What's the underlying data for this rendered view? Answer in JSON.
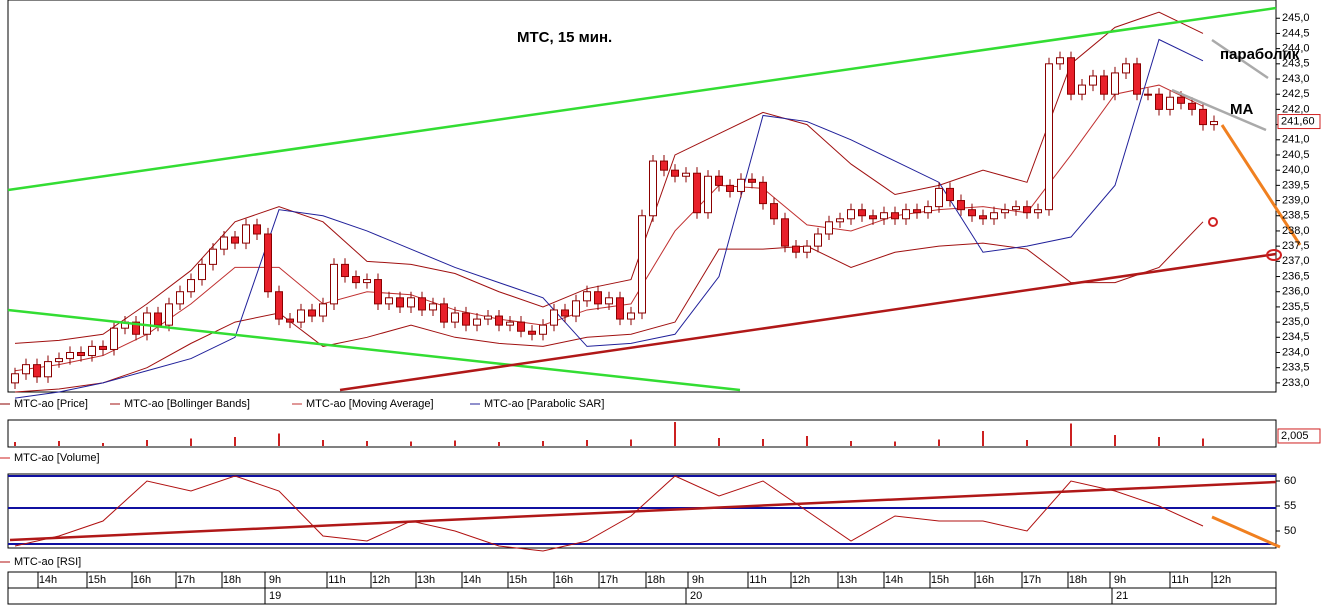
{
  "chart_data": [
    {
      "type": "candlestick",
      "name": "MTC-ao [Price]",
      "title": "МТС, 15 мин.",
      "annotations": [
        "параболик",
        "МА"
      ],
      "up_color": "#ffffff",
      "down_color": "#e8202a",
      "edge_color": "#8b0000",
      "ylim": [
        232.7,
        245.6
      ],
      "yticks": [
        {
          "value": 233,
          "label": "233,0"
        },
        {
          "value": 233.5,
          "label": "233,5"
        },
        {
          "value": 234,
          "label": "234,0"
        },
        {
          "value": 234.5,
          "label": "234,5"
        },
        {
          "value": 235,
          "label": "235,0"
        },
        {
          "value": 235.5,
          "label": "235,5"
        },
        {
          "value": 236,
          "label": "236,0"
        },
        {
          "value": 236.5,
          "label": "236,5"
        },
        {
          "value": 237,
          "label": "237,0"
        },
        {
          "value": 237.5,
          "label": "237,5"
        },
        {
          "value": 238,
          "label": "238,0"
        },
        {
          "value": 238.5,
          "label": "238,5"
        },
        {
          "value": 239,
          "label": "239,0"
        },
        {
          "value": 239.5,
          "label": "239,5"
        },
        {
          "value": 240,
          "label": "240,0"
        },
        {
          "value": 240.5,
          "label": "240,5"
        },
        {
          "value": 241,
          "label": "241,0"
        },
        {
          "value": 241.5,
          "label": "241,5"
        },
        {
          "value": 242,
          "label": "242,0"
        },
        {
          "value": 242.5,
          "label": "242,5"
        },
        {
          "value": 243,
          "label": "243,0"
        },
        {
          "value": 243.5,
          "label": "243,5"
        },
        {
          "value": 244,
          "label": "244,0"
        },
        {
          "value": 244.5,
          "label": "244,5"
        },
        {
          "value": 245,
          "label": "245,0"
        }
      ],
      "current": {
        "value": 241.6,
        "label": "241,60"
      },
      "ohlc": [
        [
          233.0,
          233.5,
          232.8,
          233.3
        ],
        [
          233.3,
          233.8,
          233.1,
          233.6
        ],
        [
          233.6,
          233.8,
          233.0,
          233.2
        ],
        [
          233.2,
          233.9,
          233.0,
          233.7
        ],
        [
          233.7,
          234.0,
          233.5,
          233.8
        ],
        [
          233.8,
          234.2,
          233.6,
          234.0
        ],
        [
          234.0,
          234.2,
          233.7,
          233.9
        ],
        [
          233.9,
          234.4,
          233.7,
          234.2
        ],
        [
          234.2,
          234.4,
          233.9,
          234.1
        ],
        [
          234.1,
          235.0,
          233.9,
          234.8
        ],
        [
          234.8,
          235.2,
          234.6,
          235.0
        ],
        [
          235.0,
          235.2,
          234.4,
          234.6
        ],
        [
          234.6,
          235.5,
          234.4,
          235.3
        ],
        [
          235.3,
          235.5,
          234.7,
          234.9
        ],
        [
          234.9,
          235.8,
          234.7,
          235.6
        ],
        [
          235.6,
          236.2,
          235.4,
          236.0
        ],
        [
          236.0,
          236.6,
          235.8,
          236.4
        ],
        [
          236.4,
          237.1,
          236.2,
          236.9
        ],
        [
          236.9,
          237.6,
          236.7,
          237.4
        ],
        [
          237.4,
          238.0,
          237.2,
          237.8
        ],
        [
          237.8,
          238.0,
          237.4,
          237.6
        ],
        [
          237.6,
          238.4,
          237.4,
          238.2
        ],
        [
          238.2,
          238.4,
          237.7,
          237.9
        ],
        [
          237.9,
          238.1,
          235.8,
          236.0
        ],
        [
          236.0,
          236.2,
          234.9,
          235.1
        ],
        [
          235.1,
          235.3,
          234.8,
          235.0
        ],
        [
          235.0,
          235.6,
          234.8,
          235.4
        ],
        [
          235.4,
          235.6,
          235.0,
          235.2
        ],
        [
          235.2,
          235.8,
          235.0,
          235.6
        ],
        [
          235.6,
          237.1,
          235.4,
          236.9
        ],
        [
          236.9,
          237.1,
          236.3,
          236.5
        ],
        [
          236.5,
          236.7,
          236.1,
          236.3
        ],
        [
          236.3,
          236.6,
          236.1,
          236.4
        ],
        [
          236.4,
          236.6,
          235.4,
          235.6
        ],
        [
          235.6,
          236.0,
          235.4,
          235.8
        ],
        [
          235.8,
          236.0,
          235.3,
          235.5
        ],
        [
          235.5,
          236.0,
          235.3,
          235.8
        ],
        [
          235.8,
          236.0,
          235.2,
          235.4
        ],
        [
          235.4,
          235.8,
          235.2,
          235.6
        ],
        [
          235.6,
          235.8,
          234.8,
          235.0
        ],
        [
          235.0,
          235.5,
          234.8,
          235.3
        ],
        [
          235.3,
          235.5,
          234.7,
          234.9
        ],
        [
          234.9,
          235.3,
          234.7,
          235.1
        ],
        [
          235.1,
          235.4,
          234.9,
          235.2
        ],
        [
          235.2,
          235.4,
          234.7,
          234.9
        ],
        [
          234.9,
          235.2,
          234.7,
          235.0
        ],
        [
          235.0,
          235.2,
          234.5,
          234.7
        ],
        [
          234.7,
          234.9,
          234.4,
          234.6
        ],
        [
          234.6,
          235.1,
          234.4,
          234.9
        ],
        [
          234.9,
          235.6,
          234.7,
          235.4
        ],
        [
          235.4,
          235.6,
          235.0,
          235.2
        ],
        [
          235.2,
          235.9,
          235.0,
          235.7
        ],
        [
          235.7,
          236.2,
          235.5,
          236.0
        ],
        [
          236.0,
          236.2,
          235.4,
          235.6
        ],
        [
          235.6,
          236.0,
          235.4,
          235.8
        ],
        [
          235.8,
          236.0,
          234.9,
          235.1
        ],
        [
          235.1,
          235.5,
          234.9,
          235.3
        ],
        [
          235.3,
          238.7,
          235.1,
          238.5
        ],
        [
          238.5,
          240.5,
          238.3,
          240.3
        ],
        [
          240.3,
          240.5,
          239.8,
          240.0
        ],
        [
          240.0,
          240.2,
          239.6,
          239.8
        ],
        [
          239.8,
          240.1,
          239.6,
          239.9
        ],
        [
          239.9,
          240.1,
          238.4,
          238.6
        ],
        [
          238.6,
          240.0,
          238.4,
          239.8
        ],
        [
          239.8,
          240.0,
          239.3,
          239.5
        ],
        [
          239.5,
          239.7,
          239.1,
          239.3
        ],
        [
          239.3,
          239.9,
          239.1,
          239.7
        ],
        [
          239.7,
          239.9,
          239.4,
          239.6
        ],
        [
          239.6,
          239.8,
          238.7,
          238.9
        ],
        [
          238.9,
          239.1,
          238.2,
          238.4
        ],
        [
          238.4,
          238.6,
          237.3,
          237.5
        ],
        [
          237.5,
          237.7,
          237.1,
          237.3
        ],
        [
          237.3,
          237.7,
          237.1,
          237.5
        ],
        [
          237.5,
          238.1,
          237.3,
          237.9
        ],
        [
          237.9,
          238.5,
          237.7,
          238.3
        ],
        [
          238.3,
          238.6,
          238.1,
          238.4
        ],
        [
          238.4,
          238.9,
          238.2,
          238.7
        ],
        [
          238.7,
          238.9,
          238.3,
          238.5
        ],
        [
          238.5,
          238.7,
          238.2,
          238.4
        ],
        [
          238.4,
          238.8,
          238.2,
          238.6
        ],
        [
          238.6,
          238.8,
          238.2,
          238.4
        ],
        [
          238.4,
          238.9,
          238.2,
          238.7
        ],
        [
          238.7,
          238.9,
          238.4,
          238.6
        ],
        [
          238.6,
          239.0,
          238.4,
          238.8
        ],
        [
          238.8,
          239.6,
          238.6,
          239.4
        ],
        [
          239.4,
          239.6,
          238.8,
          239.0
        ],
        [
          239.0,
          239.2,
          238.5,
          238.7
        ],
        [
          238.7,
          238.9,
          238.3,
          238.5
        ],
        [
          238.5,
          238.7,
          238.2,
          238.4
        ],
        [
          238.4,
          238.8,
          238.2,
          238.6
        ],
        [
          238.6,
          238.9,
          238.4,
          238.7
        ],
        [
          238.7,
          239.0,
          238.5,
          238.8
        ],
        [
          238.8,
          239.0,
          238.4,
          238.6
        ],
        [
          238.6,
          238.9,
          238.4,
          238.7
        ],
        [
          238.7,
          243.7,
          238.5,
          243.5
        ],
        [
          243.5,
          243.9,
          243.3,
          243.7
        ],
        [
          243.7,
          243.9,
          242.3,
          242.5
        ],
        [
          242.5,
          243.0,
          242.3,
          242.8
        ],
        [
          242.8,
          243.3,
          242.6,
          243.1
        ],
        [
          243.1,
          243.3,
          242.3,
          242.5
        ],
        [
          242.5,
          243.4,
          242.3,
          243.2
        ],
        [
          243.2,
          243.7,
          243.0,
          243.5
        ],
        [
          243.5,
          243.7,
          242.3,
          242.5
        ],
        [
          242.5,
          242.7,
          242.3,
          242.5
        ],
        [
          242.5,
          242.7,
          241.8,
          242.0
        ],
        [
          242.0,
          242.6,
          241.8,
          242.4
        ],
        [
          242.4,
          242.6,
          242.0,
          242.2
        ],
        [
          242.2,
          242.4,
          241.8,
          242.0
        ],
        [
          242.0,
          242.2,
          241.3,
          241.5
        ],
        [
          241.5,
          241.8,
          241.3,
          241.6
        ]
      ],
      "series": [
        {
          "name": "MTC-ao [Bollinger Bands]",
          "color": "#a01010",
          "upper": [
            234.3,
            234.4,
            234.6,
            235.6,
            236.7,
            238.3,
            238.8,
            238.3,
            237.0,
            236.9,
            236.6,
            236.0,
            235.5,
            236.1,
            236.4,
            240.5,
            241.2,
            241.9,
            241.5,
            240.2,
            239.2,
            239.5,
            240.0,
            239.6,
            243.5,
            244.7,
            245.2,
            244.5
          ],
          "lower": [
            232.7,
            232.8,
            233.0,
            233.5,
            234.3,
            235.0,
            235.3,
            234.2,
            234.5,
            234.9,
            234.5,
            234.3,
            234.2,
            234.5,
            234.6,
            235.0,
            237.4,
            237.4,
            237.5,
            236.8,
            237.3,
            237.5,
            237.6,
            237.4,
            236.3,
            236.3,
            236.8,
            238.3
          ]
        },
        {
          "name": "MTC-ao [Moving Average]",
          "color": "#c03030",
          "values": [
            233.4,
            233.6,
            233.9,
            234.6,
            235.6,
            236.8,
            236.8,
            235.6,
            236.0,
            235.9,
            235.4,
            235.1,
            234.9,
            235.4,
            235.6,
            238.0,
            239.5,
            239.4,
            238.2,
            238.0,
            238.5,
            238.7,
            238.8,
            238.6,
            240.5,
            242.5,
            242.8,
            242.1
          ]
        },
        {
          "name": "MTC-ao [Parabolic SAR]",
          "color": "#20209a",
          "values": [
            232.5,
            232.7,
            233.0,
            233.4,
            233.8,
            234.5,
            238.7,
            238.5,
            238.0,
            237.4,
            236.8,
            236.3,
            235.8,
            234.2,
            234.3,
            234.6,
            236.5,
            241.8,
            241.6,
            241.0,
            240.3,
            239.6,
            237.3,
            237.5,
            237.8,
            239.5,
            244.3,
            243.6
          ]
        }
      ]
    },
    {
      "type": "bar",
      "name": "MTC-ao [Volume]",
      "color": "#cc2020",
      "ylim": [
        0,
        5
      ],
      "current": {
        "value": 2.005,
        "label": "2,005"
      },
      "values": [
        0.8,
        1.0,
        0.6,
        1.2,
        1.5,
        1.8,
        2.5,
        1.2,
        1.0,
        0.9,
        1.1,
        0.8,
        1.0,
        1.2,
        1.3,
        4.8,
        1.6,
        1.4,
        2.0,
        1.0,
        0.9,
        1.3,
        3.0,
        1.2,
        4.5,
        2.2,
        1.8,
        1.5
      ]
    },
    {
      "type": "line",
      "name": "MTC-ao [RSI]",
      "color": "#b01010",
      "level_color": "#1010a0",
      "ylim": [
        46.6,
        61.4
      ],
      "yticks": [
        50,
        55,
        60
      ],
      "levels": [
        61,
        54.6,
        47.4
      ],
      "values": [
        47,
        49,
        52,
        60,
        58,
        61,
        58,
        49,
        48,
        52,
        50,
        47,
        46,
        48,
        53,
        61,
        57,
        60,
        54,
        48,
        53,
        52,
        52,
        50,
        60,
        58,
        55,
        51
      ]
    }
  ],
  "time_axis": {
    "hours": [
      "14h",
      "15h",
      "16h",
      "17h",
      "18h",
      "9h",
      "11h",
      "12h",
      "13h",
      "14h",
      "15h",
      "16h",
      "17h",
      "18h",
      "9h",
      "11h",
      "12h",
      "13h",
      "14h",
      "15h",
      "16h",
      "17h",
      "18h",
      "9h",
      "11h",
      "12h"
    ],
    "dates": [
      "19",
      "20",
      "21"
    ]
  }
}
